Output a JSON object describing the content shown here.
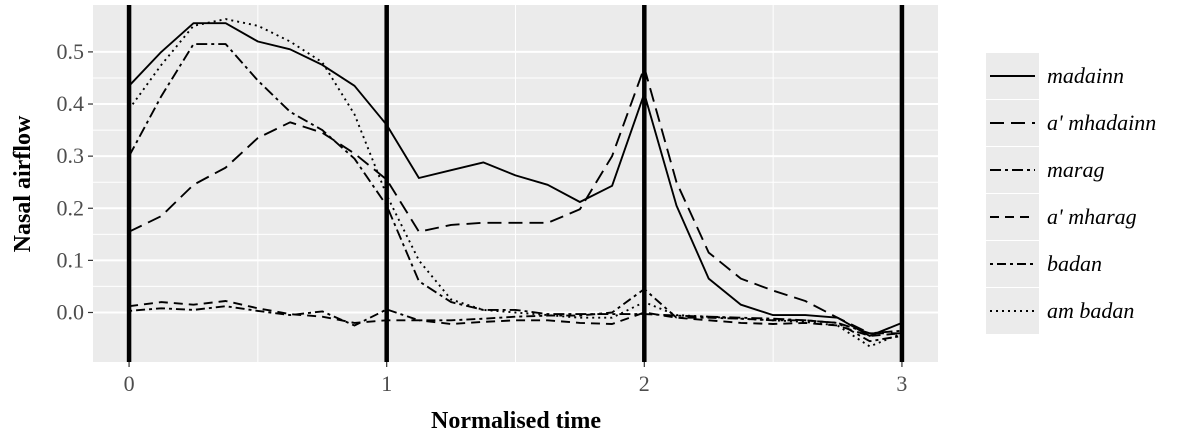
{
  "chart_data": {
    "type": "line",
    "xlabel": "Normalised time",
    "ylabel": "Nasal airflow",
    "xlim": [
      -0.14,
      3.14
    ],
    "ylim": [
      -0.095,
      0.59
    ],
    "x_ticks": [
      0,
      1,
      2,
      3
    ],
    "x_tick_labels": [
      "0",
      "1",
      "2",
      "3"
    ],
    "y_ticks": [
      0.0,
      0.1,
      0.2,
      0.3,
      0.4,
      0.5
    ],
    "y_tick_labels": [
      "0.0",
      "0.1",
      "0.2",
      "0.3",
      "0.4",
      "0.5"
    ],
    "vlines": [
      0,
      1,
      2,
      3
    ],
    "grid": true,
    "legend_position": "right",
    "panel_color": "#ebebeb",
    "line_color": "#000000",
    "series": [
      {
        "name": "madainn",
        "dash": "solid",
        "x": [
          0,
          0.125,
          0.25,
          0.375,
          0.5,
          0.625,
          0.75,
          0.875,
          1,
          1.125,
          1.25,
          1.375,
          1.5,
          1.625,
          1.75,
          1.875,
          2,
          2.125,
          2.25,
          2.375,
          2.5,
          2.625,
          2.75,
          2.875,
          3
        ],
        "y": [
          0.435,
          0.5,
          0.555,
          0.555,
          0.52,
          0.505,
          0.475,
          0.435,
          0.36,
          0.258,
          0.273,
          0.288,
          0.263,
          0.245,
          0.212,
          0.243,
          0.42,
          0.205,
          0.065,
          0.015,
          -0.005,
          -0.005,
          -0.01,
          -0.045,
          -0.02
        ]
      },
      {
        "name": "a' mhadainn",
        "dash": "longdash",
        "x": [
          0,
          0.125,
          0.25,
          0.375,
          0.5,
          0.625,
          0.75,
          0.875,
          1,
          1.125,
          1.25,
          1.375,
          1.5,
          1.625,
          1.75,
          1.875,
          2,
          2.125,
          2.25,
          2.375,
          2.5,
          2.625,
          2.75,
          2.875,
          3
        ],
        "y": [
          0.155,
          0.185,
          0.245,
          0.278,
          0.335,
          0.365,
          0.345,
          0.305,
          0.255,
          0.155,
          0.168,
          0.172,
          0.172,
          0.172,
          0.198,
          0.3,
          0.47,
          0.25,
          0.115,
          0.065,
          0.042,
          0.022,
          -0.01,
          -0.04,
          -0.04
        ]
      },
      {
        "name": "marag",
        "dash": "dashdot",
        "x": [
          0,
          0.125,
          0.25,
          0.375,
          0.5,
          0.625,
          0.75,
          0.875,
          1,
          1.125,
          1.25,
          1.375,
          1.5,
          1.625,
          1.75,
          1.875,
          2,
          2.125,
          2.25,
          2.375,
          2.5,
          2.625,
          2.75,
          2.875,
          3
        ],
        "y": [
          0.3,
          0.415,
          0.515,
          0.515,
          0.445,
          0.385,
          0.35,
          0.295,
          0.205,
          0.06,
          0.02,
          0.005,
          0.005,
          -0.003,
          -0.003,
          -0.003,
          -0.003,
          -0.006,
          -0.008,
          -0.01,
          -0.012,
          -0.015,
          -0.02,
          -0.04,
          -0.035
        ]
      },
      {
        "name": "a' mharag",
        "dash": "dashed",
        "x": [
          0,
          0.125,
          0.25,
          0.375,
          0.5,
          0.625,
          0.75,
          0.875,
          1,
          1.125,
          1.25,
          1.375,
          1.5,
          1.625,
          1.75,
          1.875,
          2,
          2.125,
          2.25,
          2.375,
          2.5,
          2.625,
          2.75,
          2.875,
          3
        ],
        "y": [
          0.012,
          0.02,
          0.015,
          0.022,
          0.008,
          -0.003,
          -0.008,
          -0.02,
          -0.015,
          -0.015,
          -0.022,
          -0.018,
          -0.015,
          -0.015,
          -0.02,
          -0.022,
          0.0,
          -0.01,
          -0.015,
          -0.02,
          -0.022,
          -0.02,
          -0.025,
          -0.045,
          -0.04
        ]
      },
      {
        "name": "badan",
        "dash": "dotdash",
        "x": [
          0,
          0.125,
          0.25,
          0.375,
          0.5,
          0.625,
          0.75,
          0.875,
          1,
          1.125,
          1.25,
          1.375,
          1.5,
          1.625,
          1.75,
          1.875,
          2,
          2.125,
          2.25,
          2.375,
          2.5,
          2.625,
          2.75,
          2.875,
          3
        ],
        "y": [
          0.003,
          0.008,
          0.005,
          0.012,
          0.003,
          -0.005,
          0.002,
          -0.025,
          0.006,
          -0.015,
          -0.015,
          -0.012,
          -0.008,
          -0.006,
          -0.006,
          0.0,
          0.045,
          -0.01,
          -0.01,
          -0.012,
          -0.015,
          -0.015,
          -0.02,
          -0.055,
          -0.045
        ]
      },
      {
        "name": "am badan",
        "dash": "dotted",
        "x": [
          0,
          0.125,
          0.25,
          0.375,
          0.5,
          0.625,
          0.75,
          0.875,
          1,
          1.125,
          1.25,
          1.375,
          1.5,
          1.625,
          1.75,
          1.875,
          2,
          2.125,
          2.25,
          2.375,
          2.5,
          2.625,
          2.75,
          2.875,
          3
        ],
        "y": [
          0.39,
          0.475,
          0.55,
          0.563,
          0.55,
          0.52,
          0.48,
          0.38,
          0.225,
          0.1,
          0.025,
          0.005,
          0.0,
          -0.005,
          -0.01,
          -0.01,
          0.02,
          -0.005,
          -0.008,
          -0.012,
          -0.015,
          -0.018,
          -0.025,
          -0.065,
          -0.04
        ]
      }
    ]
  }
}
